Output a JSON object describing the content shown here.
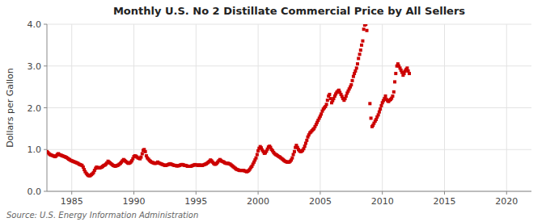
{
  "chart_data": {
    "type": "scatter",
    "title": "Monthly U.S. No 2 Distillate Commercial Price by All Sellers",
    "ylabel": "Dollars per Gallon",
    "source": "Source: U.S. Energy Information Administration",
    "color": "#cc0000",
    "marker": "square",
    "grid": true,
    "xlim": [
      1983,
      2022
    ],
    "ylim": [
      0.0,
      4.0
    ],
    "xticks": [
      1985,
      1990,
      1995,
      2000,
      2005,
      2010,
      2015,
      2020
    ],
    "yticks": [
      {
        "value": 0.0,
        "label": "0.0"
      },
      {
        "value": 1.0,
        "label": "1.0"
      },
      {
        "value": 2.0,
        "label": "2.0"
      },
      {
        "value": 3.0,
        "label": "3.0"
      },
      {
        "value": 4.0,
        "label": "4.0"
      }
    ],
    "x": [
      1983.0,
      1983.08,
      1983.17,
      1983.25,
      1983.33,
      1983.42,
      1983.5,
      1983.58,
      1983.67,
      1983.75,
      1983.83,
      1983.92,
      1984.0,
      1984.08,
      1984.17,
      1984.25,
      1984.33,
      1984.42,
      1984.5,
      1984.58,
      1984.67,
      1984.75,
      1984.83,
      1984.92,
      1985.0,
      1985.08,
      1985.17,
      1985.25,
      1985.33,
      1985.42,
      1985.5,
      1985.58,
      1985.67,
      1985.75,
      1985.83,
      1985.92,
      1986.0,
      1986.08,
      1986.17,
      1986.25,
      1986.33,
      1986.42,
      1986.5,
      1986.58,
      1986.67,
      1986.75,
      1986.83,
      1986.92,
      1987.0,
      1987.08,
      1987.17,
      1987.25,
      1987.33,
      1987.42,
      1987.5,
      1987.58,
      1987.67,
      1987.75,
      1987.83,
      1987.92,
      1988.0,
      1988.08,
      1988.17,
      1988.25,
      1988.33,
      1988.42,
      1988.5,
      1988.58,
      1988.67,
      1988.75,
      1988.83,
      1988.92,
      1989.0,
      1989.08,
      1989.17,
      1989.25,
      1989.33,
      1989.42,
      1989.5,
      1989.58,
      1989.67,
      1989.75,
      1989.83,
      1989.92,
      1990.0,
      1990.08,
      1990.17,
      1990.25,
      1990.33,
      1990.42,
      1990.5,
      1990.58,
      1990.67,
      1990.75,
      1990.83,
      1990.92,
      1991.0,
      1991.08,
      1991.17,
      1991.25,
      1991.33,
      1991.42,
      1991.5,
      1991.58,
      1991.67,
      1991.75,
      1991.83,
      1991.92,
      1992.0,
      1992.08,
      1992.17,
      1992.25,
      1992.33,
      1992.42,
      1992.5,
      1992.58,
      1992.67,
      1992.75,
      1992.83,
      1992.92,
      1993.0,
      1993.08,
      1993.17,
      1993.25,
      1993.33,
      1993.42,
      1993.5,
      1993.58,
      1993.67,
      1993.75,
      1993.83,
      1993.92,
      1994.0,
      1994.08,
      1994.17,
      1994.25,
      1994.33,
      1994.42,
      1994.5,
      1994.58,
      1994.67,
      1994.75,
      1994.83,
      1994.92,
      1995.0,
      1995.08,
      1995.17,
      1995.25,
      1995.33,
      1995.42,
      1995.5,
      1995.58,
      1995.67,
      1995.75,
      1995.83,
      1995.92,
      1996.0,
      1996.08,
      1996.17,
      1996.25,
      1996.33,
      1996.42,
      1996.5,
      1996.58,
      1996.67,
      1996.75,
      1996.83,
      1996.92,
      1997.0,
      1997.08,
      1997.17,
      1997.25,
      1997.33,
      1997.42,
      1997.5,
      1997.58,
      1997.67,
      1997.75,
      1997.83,
      1997.92,
      1998.0,
      1998.08,
      1998.17,
      1998.25,
      1998.33,
      1998.42,
      1998.5,
      1998.58,
      1998.67,
      1998.75,
      1998.83,
      1998.92,
      1999.0,
      1999.08,
      1999.17,
      1999.25,
      1999.33,
      1999.42,
      1999.5,
      1999.58,
      1999.67,
      1999.75,
      1999.83,
      1999.92,
      2000.0,
      2000.08,
      2000.17,
      2000.25,
      2000.33,
      2000.42,
      2000.5,
      2000.58,
      2000.67,
      2000.75,
      2000.83,
      2000.92,
      2001.0,
      2001.08,
      2001.17,
      2001.25,
      2001.33,
      2001.42,
      2001.5,
      2001.58,
      2001.67,
      2001.75,
      2001.83,
      2001.92,
      2002.0,
      2002.08,
      2002.17,
      2002.25,
      2002.33,
      2002.42,
      2002.5,
      2002.58,
      2002.67,
      2002.75,
      2002.83,
      2002.92,
      2003.0,
      2003.08,
      2003.17,
      2003.25,
      2003.33,
      2003.42,
      2003.5,
      2003.58,
      2003.67,
      2003.75,
      2003.83,
      2003.92,
      2004.0,
      2004.08,
      2004.17,
      2004.25,
      2004.33,
      2004.42,
      2004.5,
      2004.58,
      2004.67,
      2004.75,
      2004.83,
      2004.92,
      2005.0,
      2005.08,
      2005.17,
      2005.25,
      2005.33,
      2005.42,
      2005.5,
      2005.58,
      2005.67,
      2005.75,
      2005.83,
      2005.92,
      2006.0,
      2006.08,
      2006.17,
      2006.25,
      2006.33,
      2006.42,
      2006.5,
      2006.58,
      2006.67,
      2006.75,
      2006.83,
      2006.92,
      2007.0,
      2007.08,
      2007.17,
      2007.25,
      2007.33,
      2007.42,
      2007.5,
      2007.58,
      2007.67,
      2007.75,
      2007.83,
      2007.92,
      2008.0,
      2008.08,
      2008.17,
      2008.25,
      2008.33,
      2008.42,
      2008.5,
      2008.58,
      2008.67,
      2008.75,
      2009.0,
      2009.08,
      2009.17,
      2009.25,
      2009.33,
      2009.42,
      2009.5,
      2009.58,
      2009.67,
      2009.75,
      2009.83,
      2009.92,
      2010.0,
      2010.08,
      2010.17,
      2010.25,
      2010.33,
      2010.42,
      2010.5,
      2010.58,
      2010.67,
      2010.75,
      2010.83,
      2010.92,
      2011.0,
      2011.08,
      2011.17,
      2011.25,
      2011.33,
      2011.42,
      2011.5,
      2011.58,
      2011.67,
      2011.75,
      2011.83,
      2011.92,
      2012.0,
      2012.08,
      2012.17
    ],
    "values": [
      0.95,
      0.93,
      0.9,
      0.88,
      0.87,
      0.86,
      0.85,
      0.84,
      0.83,
      0.85,
      0.88,
      0.9,
      0.88,
      0.87,
      0.86,
      0.85,
      0.84,
      0.83,
      0.82,
      0.81,
      0.79,
      0.77,
      0.76,
      0.74,
      0.73,
      0.72,
      0.71,
      0.7,
      0.69,
      0.68,
      0.67,
      0.65,
      0.64,
      0.63,
      0.62,
      0.58,
      0.52,
      0.47,
      0.43,
      0.4,
      0.38,
      0.37,
      0.38,
      0.4,
      0.42,
      0.45,
      0.5,
      0.55,
      0.58,
      0.57,
      0.56,
      0.56,
      0.57,
      0.58,
      0.6,
      0.62,
      0.63,
      0.65,
      0.68,
      0.72,
      0.7,
      0.68,
      0.66,
      0.64,
      0.62,
      0.61,
      0.6,
      0.61,
      0.62,
      0.63,
      0.65,
      0.67,
      0.7,
      0.73,
      0.76,
      0.74,
      0.72,
      0.7,
      0.68,
      0.67,
      0.68,
      0.7,
      0.73,
      0.78,
      0.83,
      0.85,
      0.84,
      0.82,
      0.8,
      0.79,
      0.78,
      0.82,
      0.9,
      0.98,
      1.0,
      0.95,
      0.85,
      0.8,
      0.77,
      0.74,
      0.72,
      0.7,
      0.69,
      0.68,
      0.67,
      0.67,
      0.68,
      0.7,
      0.68,
      0.67,
      0.66,
      0.65,
      0.64,
      0.63,
      0.62,
      0.62,
      0.63,
      0.64,
      0.65,
      0.66,
      0.65,
      0.64,
      0.63,
      0.62,
      0.62,
      0.61,
      0.61,
      0.61,
      0.62,
      0.63,
      0.64,
      0.64,
      0.63,
      0.62,
      0.62,
      0.61,
      0.6,
      0.6,
      0.6,
      0.6,
      0.61,
      0.62,
      0.63,
      0.64,
      0.63,
      0.63,
      0.62,
      0.63,
      0.63,
      0.62,
      0.62,
      0.63,
      0.64,
      0.65,
      0.66,
      0.68,
      0.7,
      0.72,
      0.75,
      0.73,
      0.7,
      0.67,
      0.65,
      0.65,
      0.67,
      0.7,
      0.73,
      0.76,
      0.74,
      0.72,
      0.71,
      0.7,
      0.68,
      0.67,
      0.67,
      0.67,
      0.66,
      0.65,
      0.63,
      0.61,
      0.59,
      0.57,
      0.55,
      0.53,
      0.52,
      0.51,
      0.5,
      0.5,
      0.5,
      0.5,
      0.5,
      0.49,
      0.48,
      0.47,
      0.48,
      0.5,
      0.53,
      0.57,
      0.6,
      0.65,
      0.7,
      0.75,
      0.8,
      0.88,
      0.97,
      1.03,
      1.07,
      1.04,
      0.99,
      0.95,
      0.91,
      0.92,
      0.96,
      1.01,
      1.06,
      1.08,
      1.05,
      1.0,
      0.97,
      0.93,
      0.9,
      0.88,
      0.87,
      0.85,
      0.83,
      0.82,
      0.8,
      0.78,
      0.76,
      0.74,
      0.72,
      0.71,
      0.7,
      0.7,
      0.7,
      0.72,
      0.75,
      0.8,
      0.88,
      0.95,
      1.05,
      1.1,
      1.05,
      1.0,
      0.97,
      0.95,
      0.96,
      0.98,
      1.02,
      1.08,
      1.15,
      1.22,
      1.3,
      1.35,
      1.4,
      1.42,
      1.45,
      1.48,
      1.5,
      1.55,
      1.6,
      1.65,
      1.7,
      1.75,
      1.8,
      1.85,
      1.92,
      1.97,
      2.0,
      2.03,
      2.08,
      2.18,
      2.28,
      2.32,
      2.22,
      2.12,
      2.17,
      2.22,
      2.28,
      2.33,
      2.37,
      2.4,
      2.42,
      2.37,
      2.32,
      2.27,
      2.22,
      2.18,
      2.22,
      2.28,
      2.35,
      2.4,
      2.45,
      2.5,
      2.55,
      2.65,
      2.75,
      2.82,
      2.88,
      2.95,
      3.05,
      3.18,
      3.28,
      3.38,
      3.5,
      3.6,
      3.88,
      3.98,
      4.0,
      3.85,
      2.1,
      1.75,
      1.55,
      1.58,
      1.63,
      1.68,
      1.72,
      1.78,
      1.83,
      1.9,
      1.97,
      2.05,
      2.12,
      2.17,
      2.22,
      2.28,
      2.2,
      2.17,
      2.15,
      2.18,
      2.2,
      2.23,
      2.28,
      2.38,
      2.62,
      2.82,
      3.0,
      3.05,
      3.0,
      2.95,
      2.9,
      2.85,
      2.78,
      2.82,
      2.88,
      2.92,
      2.95,
      2.88,
      2.82
    ]
  }
}
